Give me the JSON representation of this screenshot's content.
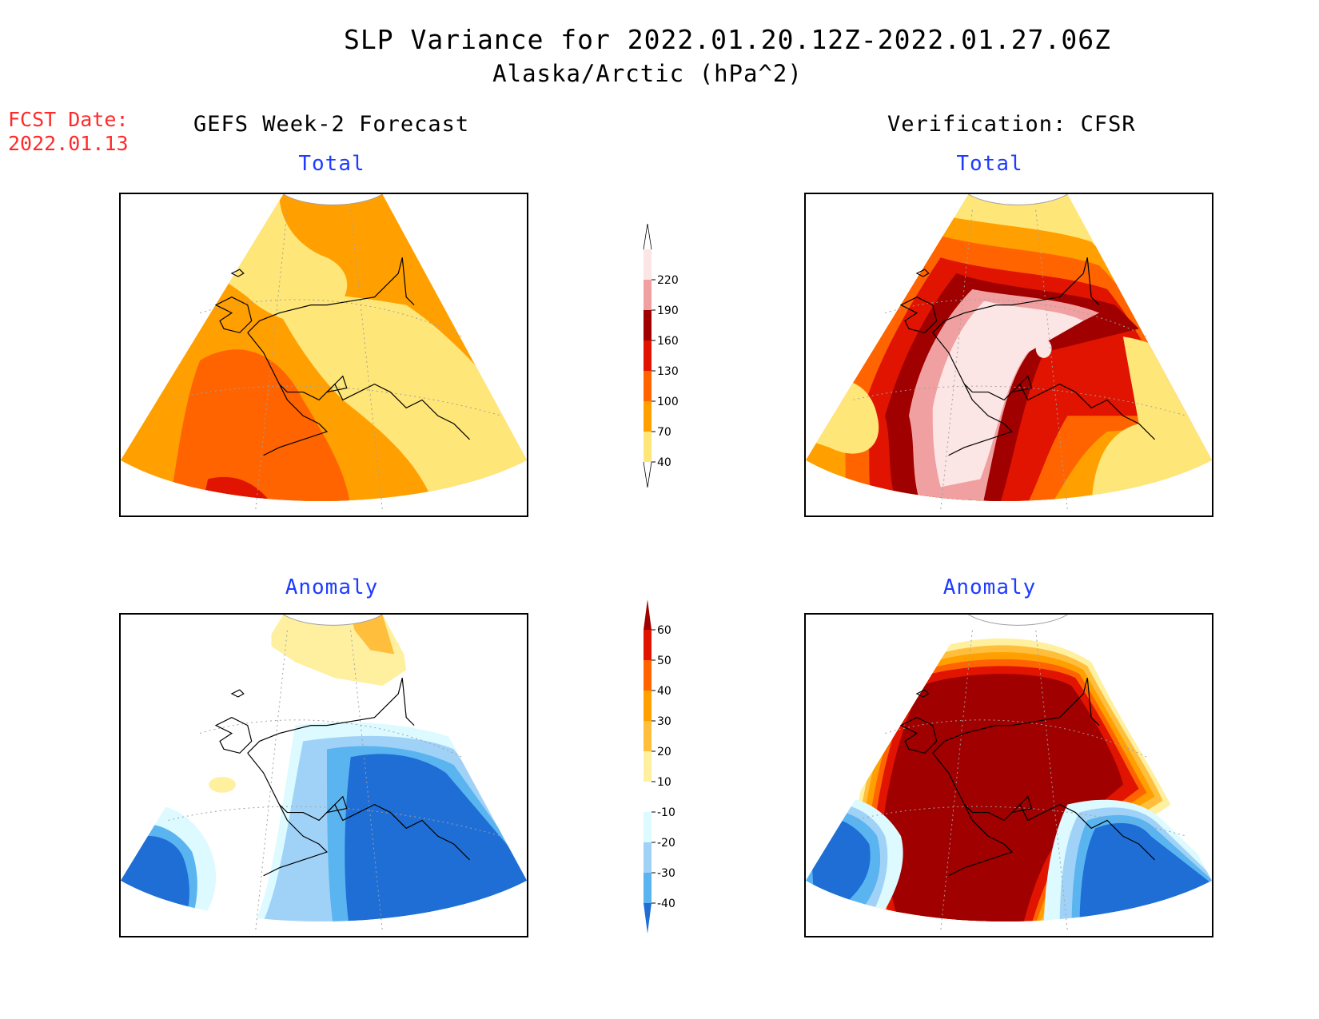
{
  "title": {
    "line1": "SLP Variance for 2022.01.20.12Z-2022.01.27.06Z",
    "line2": "Alaska/Arctic (hPa^2)"
  },
  "forecast": {
    "label": "FCST Date:",
    "date": "2022.01.13"
  },
  "columns": {
    "left": "GEFS Week-2 Forecast",
    "right": "Verification: CFSR"
  },
  "panels": {
    "total_label": "Total",
    "anomaly_label": "Anomaly"
  },
  "colorbars": {
    "total": {
      "labels": [
        "220",
        "190",
        "160",
        "130",
        "100",
        "70",
        "40"
      ],
      "colors": [
        "#fbe5e5",
        "#f0a0a0",
        "#a00000",
        "#e01400",
        "#ff6400",
        "#ffa000",
        "#ffe678"
      ]
    },
    "anomaly": {
      "labels": [
        "60",
        "50",
        "40",
        "30",
        "20",
        "10",
        "-10",
        "-20",
        "-30",
        "-40"
      ],
      "colors": [
        "#a00000",
        "#e01400",
        "#ff6400",
        "#ffa000",
        "#ffbe3c",
        "#fff0a0",
        "#ffffff",
        "#dcfaff",
        "#a0d2f8",
        "#5ab4f0",
        "#1e6ed6"
      ]
    }
  },
  "map_colors": {
    "coastline": "#000000",
    "graticule": "#a0a0a0"
  }
}
